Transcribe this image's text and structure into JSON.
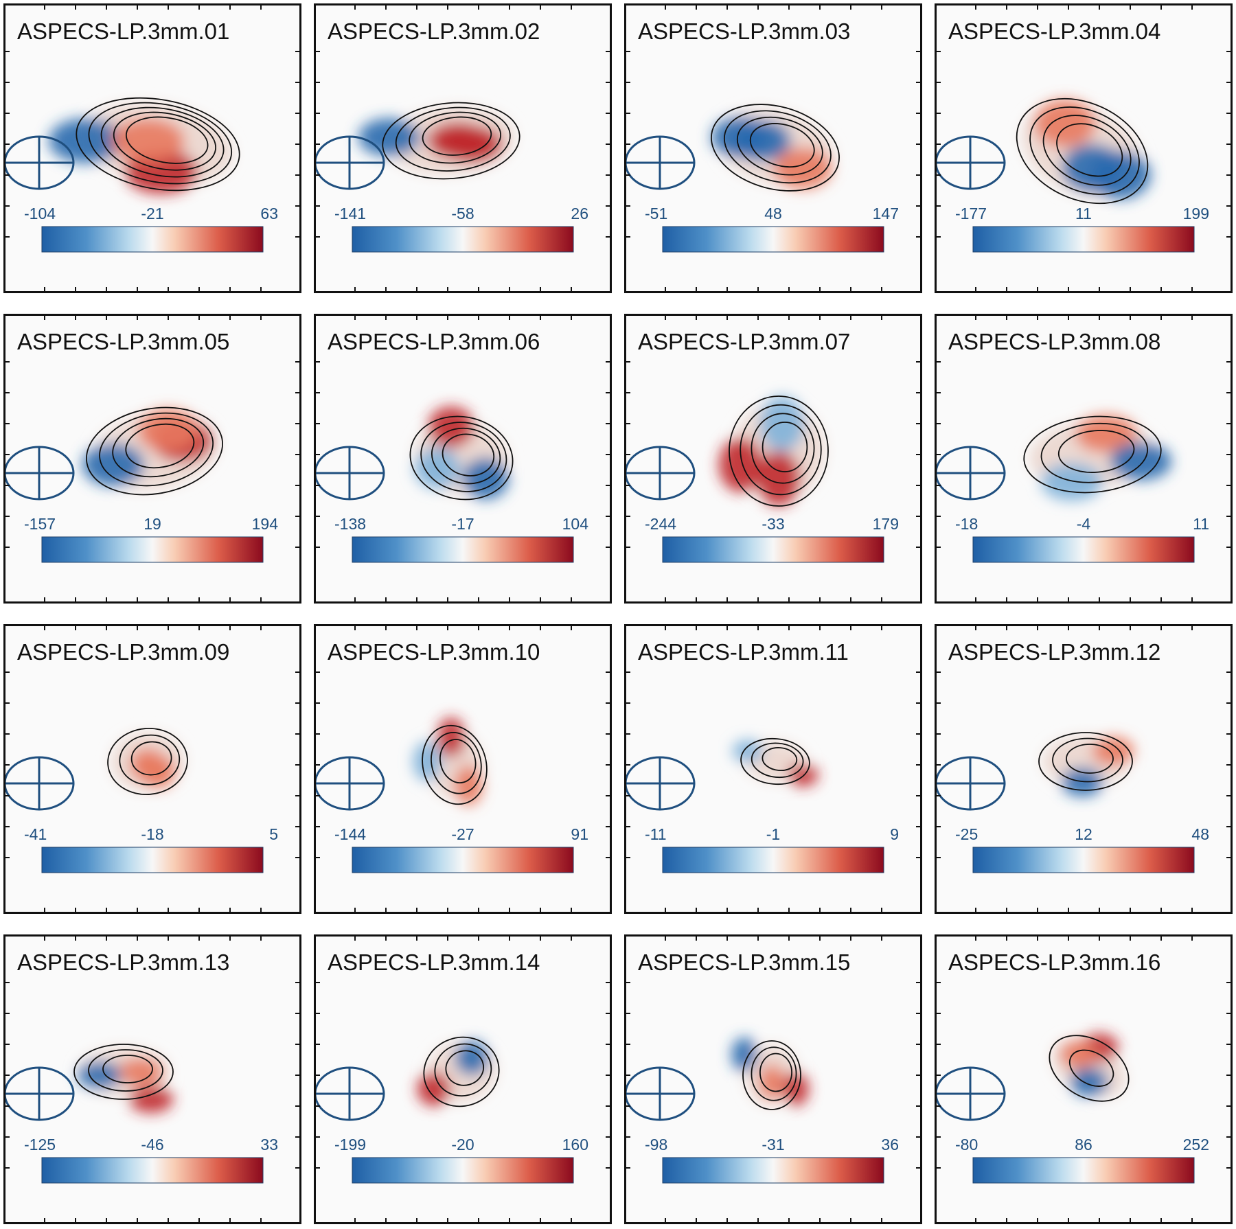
{
  "colormap": {
    "low": "#1f5fa5",
    "mid": "#f7f7f7",
    "high": "#8b0a1e"
  },
  "beam_color": "#1f4f7f",
  "panels": [
    {
      "title": "ASPECS-LP.3mm.01",
      "cbar": [
        "-104",
        "-21",
        "63"
      ]
    },
    {
      "title": "ASPECS-LP.3mm.02",
      "cbar": [
        "-141",
        "-58",
        "26"
      ]
    },
    {
      "title": "ASPECS-LP.3mm.03",
      "cbar": [
        "-51",
        "48",
        "147"
      ]
    },
    {
      "title": "ASPECS-LP.3mm.04",
      "cbar": [
        "-177",
        "11",
        "199"
      ]
    },
    {
      "title": "ASPECS-LP.3mm.05",
      "cbar": [
        "-157",
        "19",
        "194"
      ]
    },
    {
      "title": "ASPECS-LP.3mm.06",
      "cbar": [
        "-138",
        "-17",
        "104"
      ]
    },
    {
      "title": "ASPECS-LP.3mm.07",
      "cbar": [
        "-244",
        "-33",
        "179"
      ]
    },
    {
      "title": "ASPECS-LP.3mm.08",
      "cbar": [
        "-18",
        "-4",
        "11"
      ]
    },
    {
      "title": "ASPECS-LP.3mm.09",
      "cbar": [
        "-41",
        "-18",
        "5"
      ]
    },
    {
      "title": "ASPECS-LP.3mm.10",
      "cbar": [
        "-144",
        "-27",
        "91"
      ]
    },
    {
      "title": "ASPECS-LP.3mm.11",
      "cbar": [
        "-11",
        "-1",
        "9"
      ]
    },
    {
      "title": "ASPECS-LP.3mm.12",
      "cbar": [
        "-25",
        "12",
        "48"
      ]
    },
    {
      "title": "ASPECS-LP.3mm.13",
      "cbar": [
        "-125",
        "-46",
        "33"
      ]
    },
    {
      "title": "ASPECS-LP.3mm.14",
      "cbar": [
        "-199",
        "-20",
        "160"
      ]
    },
    {
      "title": "ASPECS-LP.3mm.15",
      "cbar": [
        "-98",
        "-31",
        "36"
      ]
    },
    {
      "title": "ASPECS-LP.3mm.16",
      "cbar": [
        "-80",
        "86",
        "252"
      ]
    }
  ]
}
